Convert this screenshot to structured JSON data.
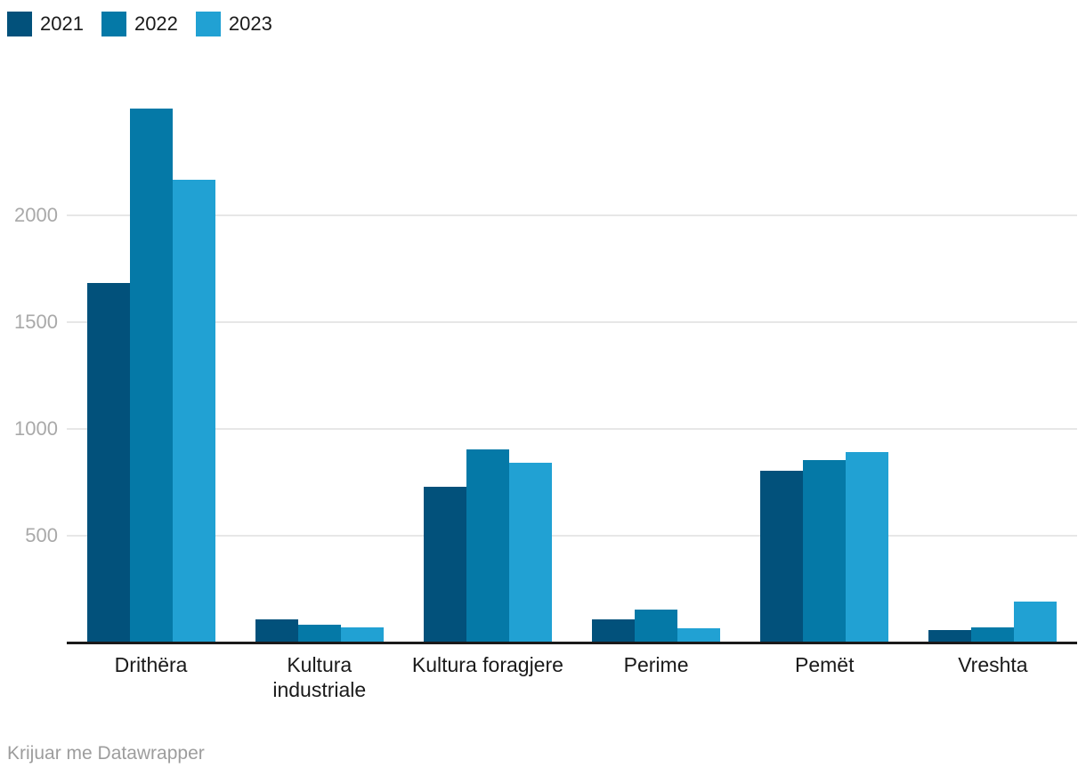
{
  "chart_data": {
    "type": "bar",
    "title": "",
    "categories": [
      "Drithëra",
      "Kultura industriale",
      "Kultura foragjere",
      "Perime",
      "Pemët",
      "Vreshta"
    ],
    "series": [
      {
        "name": "2021",
        "color": "#02517b",
        "values": [
          1685,
          110,
          730,
          107,
          805,
          60
        ]
      },
      {
        "name": "2022",
        "color": "#0579a7",
        "values": [
          2500,
          83,
          905,
          155,
          855,
          72
        ]
      },
      {
        "name": "2023",
        "color": "#21a1d3",
        "values": [
          2165,
          70,
          840,
          65,
          890,
          190
        ]
      }
    ],
    "xlabel": "",
    "ylabel": "",
    "yticks": [
      500,
      1000,
      1500,
      2000
    ],
    "ylim": [
      0,
      2590
    ],
    "grid": true,
    "legend_position": "top-left"
  },
  "footer": {
    "credit": "Krijuar me Datawrapper"
  },
  "colors": {
    "background": "#ffffff",
    "gridline": "#e7e7e7",
    "axis_line": "#1a1a1a",
    "tick_label": "#a9a9a9",
    "category_label": "#1a1a1a",
    "legend_label": "#1a1a1a",
    "credit_text": "#9d9d9d"
  }
}
